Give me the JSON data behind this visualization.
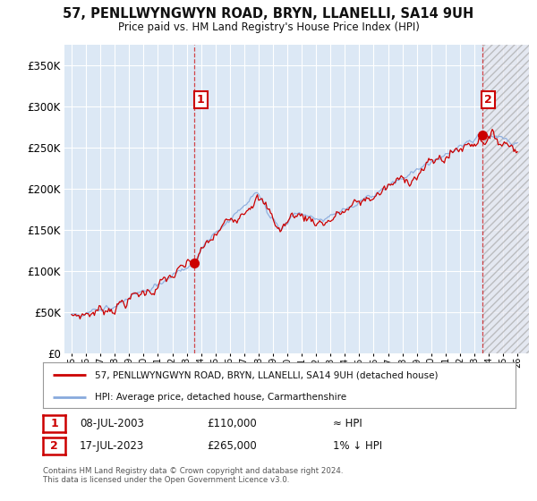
{
  "title": "57, PENLLWYNGWYN ROAD, BRYN, LLANELLI, SA14 9UH",
  "subtitle": "Price paid vs. HM Land Registry's House Price Index (HPI)",
  "ylabel_ticks": [
    "£0",
    "£50K",
    "£100K",
    "£150K",
    "£200K",
    "£250K",
    "£300K",
    "£350K"
  ],
  "ytick_values": [
    0,
    50000,
    100000,
    150000,
    200000,
    250000,
    300000,
    350000
  ],
  "ylim": [
    0,
    375000
  ],
  "xlim_start": 1994.5,
  "xlim_end": 2026.8,
  "future_start": 2023.54,
  "legend_line1": "57, PENLLWYNGWYN ROAD, BRYN, LLANELLI, SA14 9UH (detached house)",
  "legend_line2": "HPI: Average price, detached house, Carmarthenshire",
  "annotation1_label": "1",
  "annotation1_date": "08-JUL-2003",
  "annotation1_price": "£110,000",
  "annotation1_hpi": "≈ HPI",
  "annotation2_label": "2",
  "annotation2_date": "17-JUL-2023",
  "annotation2_price": "£265,000",
  "annotation2_hpi": "1% ↓ HPI",
  "footer": "Contains HM Land Registry data © Crown copyright and database right 2024.\nThis data is licensed under the Open Government Licence v3.0.",
  "line_color": "#cc0000",
  "hpi_color": "#88aadd",
  "annotation_box_color": "#cc0000",
  "bg_color": "#ffffff",
  "plot_bg_color": "#dce8f5",
  "grid_color": "#ffffff",
  "sale1_x": 2003.54,
  "sale1_y": 110000,
  "sale2_x": 2023.54,
  "sale2_y": 265000,
  "dashed_line_color": "#cc0000"
}
